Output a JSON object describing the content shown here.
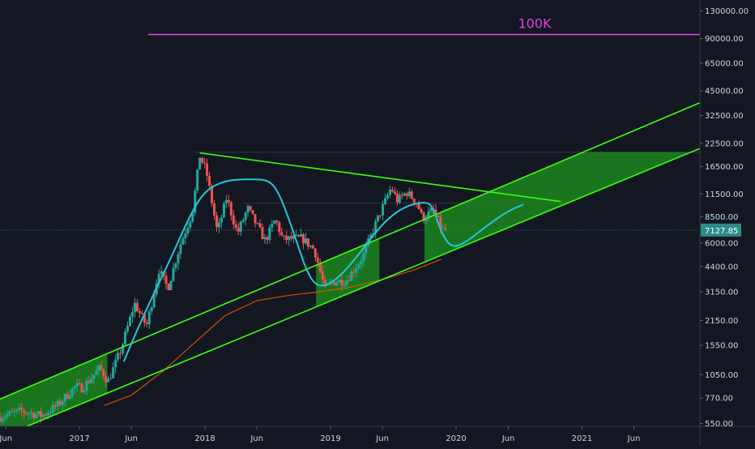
{
  "chart_data": {
    "type": "candlestick",
    "title": "",
    "xlabel": "",
    "ylabel": "",
    "y_scale": "log",
    "ylim": [
      530,
      150000
    ],
    "xlim": [
      "2016-05-15",
      "2021-12-10"
    ],
    "grid": false,
    "y_ticks": [
      {
        "v": 130000,
        "label": "130000.00"
      },
      {
        "v": 90000,
        "label": "90000.00"
      },
      {
        "v": 65000,
        "label": "65000.00"
      },
      {
        "v": 45000,
        "label": "45000.00"
      },
      {
        "v": 32500,
        "label": "32500.00"
      },
      {
        "v": 22500,
        "label": "22500.00"
      },
      {
        "v": 16500,
        "label": "16500.00"
      },
      {
        "v": 11500,
        "label": "11500.00"
      },
      {
        "v": 8500,
        "label": "8500.00"
      },
      {
        "v": 6000,
        "label": "6000.00"
      },
      {
        "v": 4400,
        "label": "4400.00"
      },
      {
        "v": 3150,
        "label": "3150.00"
      },
      {
        "v": 2150,
        "label": "2150.00"
      },
      {
        "v": 1550,
        "label": "1550.00"
      },
      {
        "v": 1050,
        "label": "1050.00"
      },
      {
        "v": 770,
        "label": "770.00"
      },
      {
        "v": 550,
        "label": "550.00"
      }
    ],
    "x_ticks": [
      {
        "d": "2016-06-01",
        "label": "Jun"
      },
      {
        "d": "2017-01-01",
        "label": "2017"
      },
      {
        "d": "2017-06-01",
        "label": "Jun"
      },
      {
        "d": "2018-01-01",
        "label": "2018"
      },
      {
        "d": "2018-06-01",
        "label": "Jun"
      },
      {
        "d": "2019-01-01",
        "label": "2019"
      },
      {
        "d": "2019-06-01",
        "label": "Jun"
      },
      {
        "d": "2020-01-01",
        "label": "2020"
      },
      {
        "d": "2020-06-01",
        "label": "Jun"
      },
      {
        "d": "2021-01-01",
        "label": "2021"
      },
      {
        "d": "2021-06-01",
        "label": "Jun"
      }
    ],
    "close_path": [
      [
        "2016-05-15",
        600
      ],
      [
        "2016-07-15",
        650
      ],
      [
        "2016-09-15",
        610
      ],
      [
        "2016-11-01",
        710
      ],
      [
        "2016-12-20",
        900
      ],
      [
        "2017-01-10",
        880
      ],
      [
        "2017-03-01",
        1150
      ],
      [
        "2017-03-25",
        960
      ],
      [
        "2017-05-01",
        1450
      ],
      [
        "2017-06-10",
        2700
      ],
      [
        "2017-07-15",
        2000
      ],
      [
        "2017-08-20",
        4200
      ],
      [
        "2017-09-15",
        3300
      ],
      [
        "2017-10-20",
        5800
      ],
      [
        "2017-11-25",
        9000
      ],
      [
        "2017-12-17",
        19000
      ],
      [
        "2018-01-05",
        15500
      ],
      [
        "2018-02-06",
        6900
      ],
      [
        "2018-03-05",
        11000
      ],
      [
        "2018-04-05",
        6800
      ],
      [
        "2018-05-05",
        9500
      ],
      [
        "2018-06-25",
        6200
      ],
      [
        "2018-07-25",
        8200
      ],
      [
        "2018-08-15",
        6300
      ],
      [
        "2018-10-10",
        6400
      ],
      [
        "2018-11-15",
        5500
      ],
      [
        "2018-12-15",
        3300
      ],
      [
        "2019-01-10",
        3600
      ],
      [
        "2019-02-15",
        3650
      ],
      [
        "2019-04-05",
        5000
      ],
      [
        "2019-05-15",
        8000
      ],
      [
        "2019-06-26",
        12500
      ],
      [
        "2019-07-15",
        10500
      ],
      [
        "2019-08-10",
        11800
      ],
      [
        "2019-09-10",
        10200
      ],
      [
        "2019-09-25",
        8300
      ],
      [
        "2019-10-26",
        9300
      ],
      [
        "2019-11-22",
        7100
      ],
      [
        "2019-12-01",
        7128
      ]
    ],
    "last_price": {
      "value": 7127.85,
      "label": "7127.85"
    },
    "moving_average": [
      [
        "2017-03-15",
        700
      ],
      [
        "2017-06-01",
        800
      ],
      [
        "2017-09-01",
        1100
      ],
      [
        "2017-12-01",
        1600
      ],
      [
        "2018-03-01",
        2300
      ],
      [
        "2018-06-01",
        2800
      ],
      [
        "2018-09-01",
        3000
      ],
      [
        "2018-12-01",
        3150
      ],
      [
        "2019-03-01",
        3350
      ],
      [
        "2019-06-01",
        3700
      ],
      [
        "2019-09-01",
        4200
      ],
      [
        "2019-11-20",
        4850
      ]
    ],
    "annotations": {
      "hundred_k_line": {
        "value": 95000,
        "from": "2017-07-20",
        "to": "2021-12-10",
        "label": "100K",
        "color": "#e040e0"
      },
      "channel_color": "#39ff14",
      "projection_color": "#26c6da",
      "moving_average_color": "#e65100",
      "up_color": "#26a69a",
      "down_color": "#ef5350"
    }
  }
}
